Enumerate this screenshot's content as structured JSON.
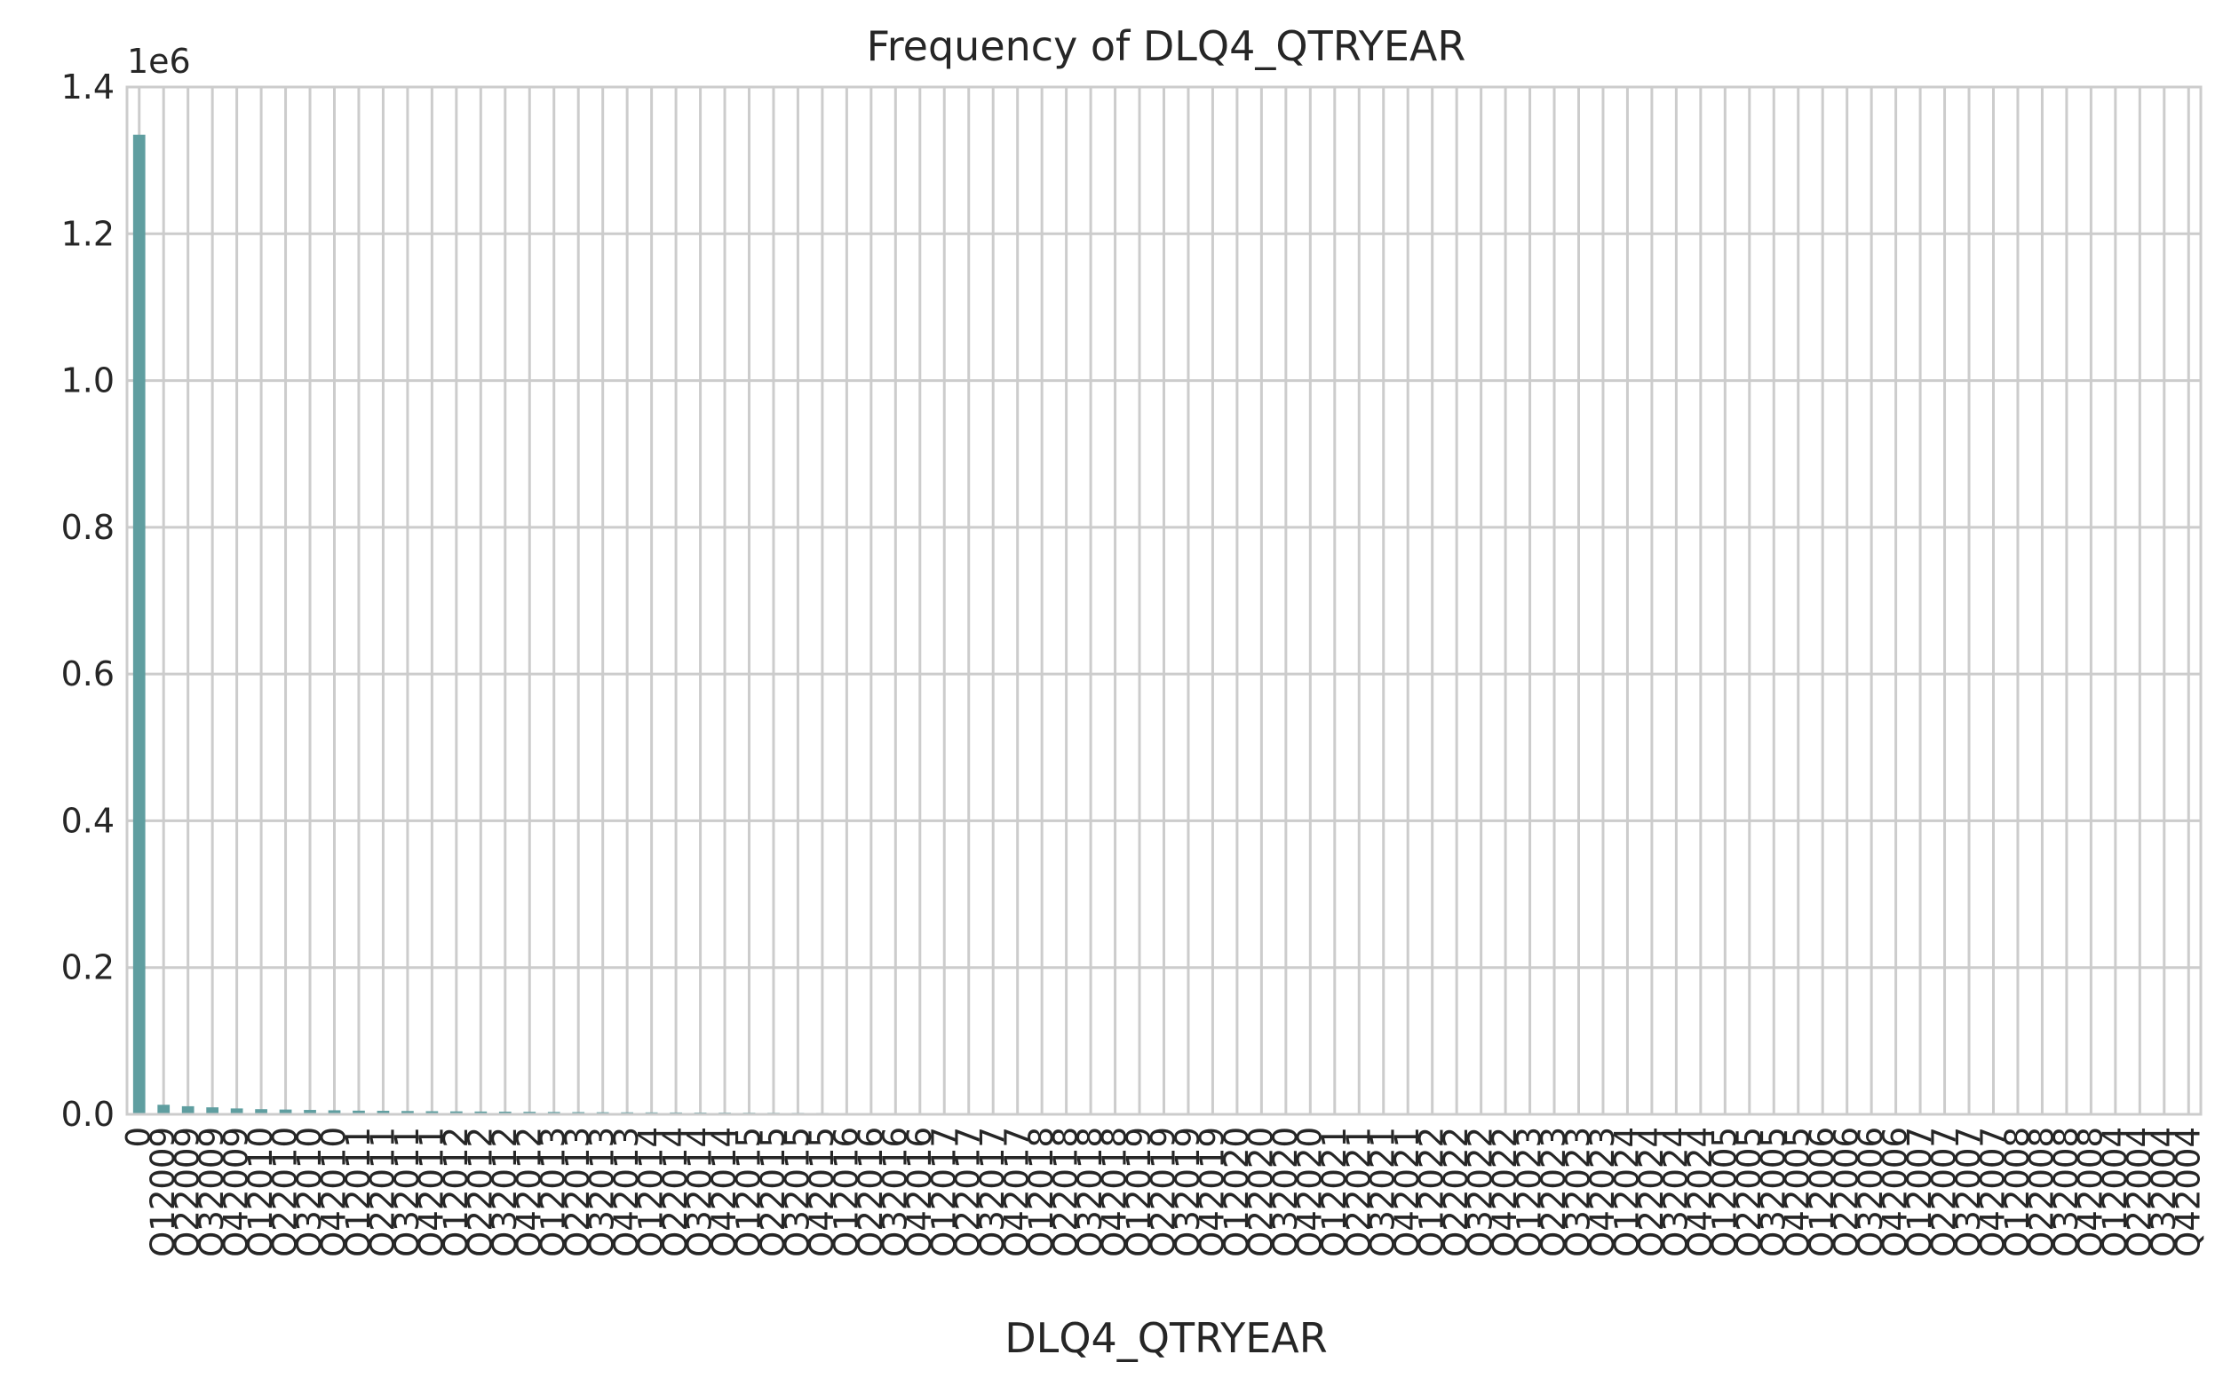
{
  "chart_data": {
    "type": "bar",
    "title": "Frequency of DLQ4_QTRYEAR",
    "xlabel": "DLQ4_QTRYEAR",
    "ylabel": "",
    "y_scale_offset": "1e6",
    "ylim": [
      0,
      1400000
    ],
    "yticks": [
      {
        "value": 0,
        "label": "0.0"
      },
      {
        "value": 200000,
        "label": "0.2"
      },
      {
        "value": 400000,
        "label": "0.4"
      },
      {
        "value": 600000,
        "label": "0.6"
      },
      {
        "value": 800000,
        "label": "0.8"
      },
      {
        "value": 1000000,
        "label": "1.0"
      },
      {
        "value": 1200000,
        "label": "1.2"
      },
      {
        "value": 1400000,
        "label": "1.4"
      }
    ],
    "grid": true,
    "bar_color": "#5f9ea0",
    "categories": [
      "0",
      "Q12009",
      "Q22009",
      "Q32009",
      "Q42009",
      "Q12010",
      "Q22010",
      "Q32010",
      "Q42010",
      "Q12011",
      "Q22011",
      "Q32011",
      "Q42011",
      "Q12012",
      "Q22012",
      "Q32012",
      "Q42012",
      "Q12013",
      "Q22013",
      "Q32013",
      "Q42013",
      "Q12014",
      "Q22014",
      "Q32014",
      "Q42014",
      "Q12015",
      "Q22015",
      "Q32015",
      "Q42015",
      "Q12016",
      "Q22016",
      "Q32016",
      "Q42016",
      "Q12017",
      "Q22017",
      "Q32017",
      "Q42017",
      "Q12018",
      "Q22018",
      "Q32018",
      "Q42018",
      "Q12019",
      "Q22019",
      "Q32019",
      "Q42019",
      "Q12020",
      "Q22020",
      "Q32020",
      "Q42020",
      "Q12021",
      "Q22021",
      "Q32021",
      "Q42021",
      "Q12022",
      "Q22022",
      "Q32022",
      "Q42022",
      "Q12023",
      "Q22023",
      "Q32023",
      "Q42023",
      "Q12024",
      "Q22024",
      "Q32024",
      "Q42024",
      "Q12005",
      "Q22005",
      "Q32005",
      "Q42005",
      "Q12006",
      "Q22006",
      "Q32006",
      "Q42006",
      "Q12007",
      "Q22007",
      "Q32007",
      "Q42007",
      "Q12008",
      "Q22008",
      "Q32008",
      "Q42008",
      "Q12004",
      "Q22004",
      "Q32004",
      "Q42004"
    ],
    "values": [
      1335000,
      13000,
      11000,
      9500,
      8000,
      7000,
      6500,
      6000,
      5500,
      5000,
      4800,
      4500,
      4200,
      4000,
      3800,
      3600,
      3400,
      3200,
      3000,
      2800,
      2700,
      2600,
      2500,
      2400,
      2300,
      2200,
      2100,
      2000,
      1900,
      1800,
      1700,
      1600,
      1550,
      1500,
      1450,
      1400,
      1350,
      1300,
      1250,
      1200,
      1150,
      1100,
      1050,
      1000,
      950,
      900,
      850,
      800,
      780,
      760,
      740,
      720,
      700,
      680,
      660,
      640,
      620,
      600,
      580,
      560,
      540,
      520,
      500,
      480,
      460,
      440,
      420,
      400,
      380,
      360,
      340,
      320,
      300,
      280,
      260,
      240,
      220,
      200,
      180,
      160,
      140,
      120,
      100,
      80,
      60
    ]
  }
}
